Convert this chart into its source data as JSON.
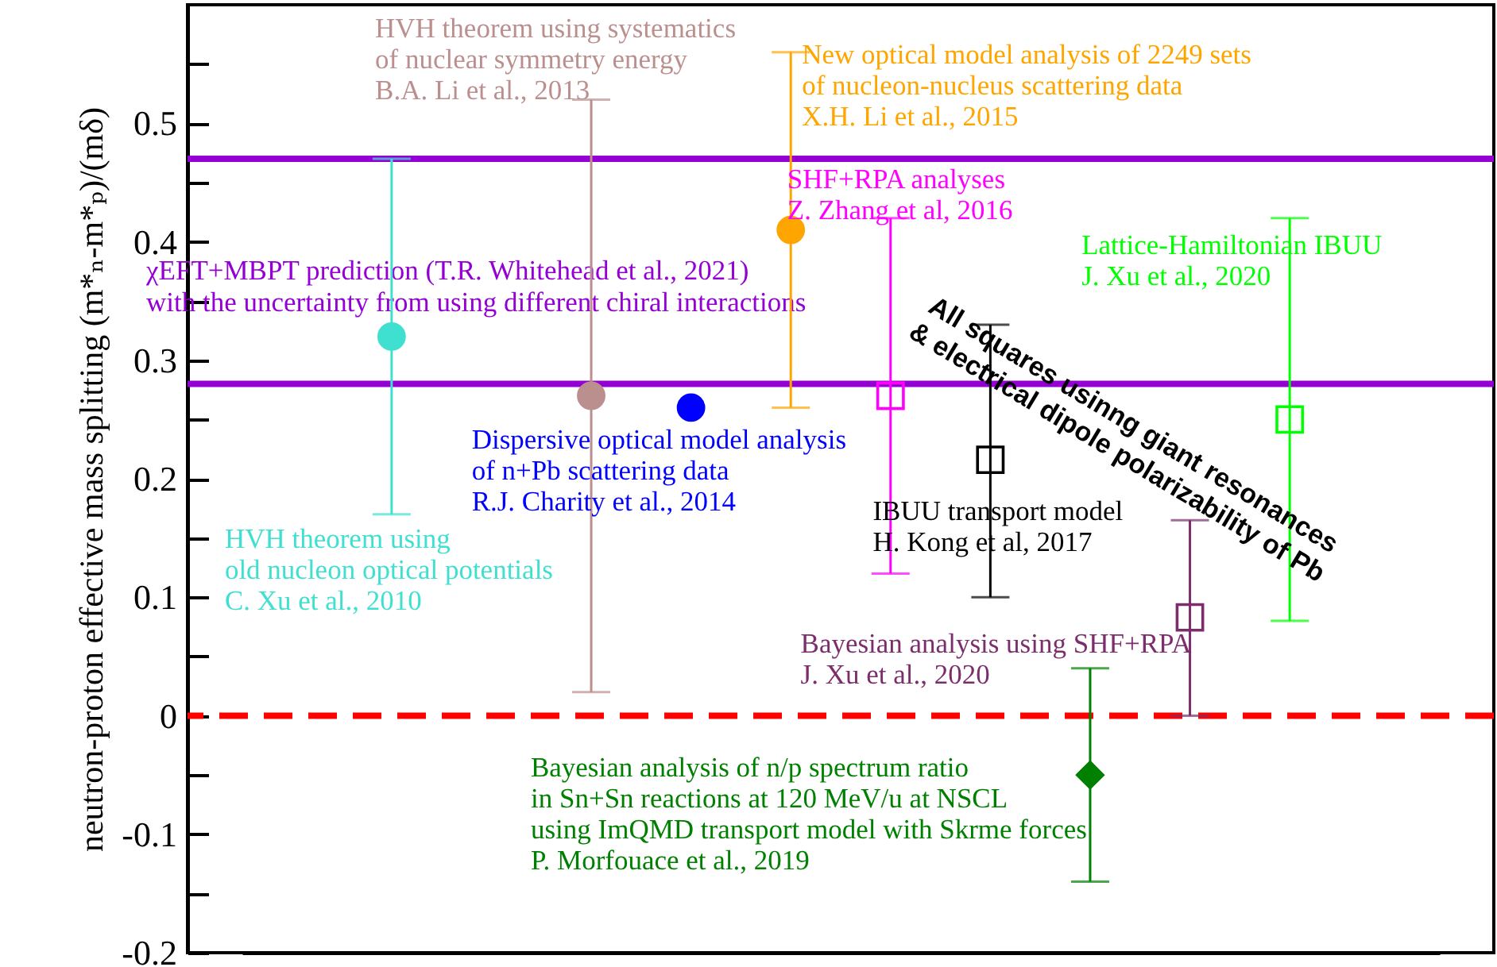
{
  "chart_data": {
    "type": "scatter",
    "ylabel": "neutron-proton effective mass splitting (m*ₙ-m*ₚ)/(mδ)",
    "categories": [
      null,
      null,
      null,
      null,
      null,
      null,
      null,
      null,
      null,
      null,
      null,
      null
    ],
    "ylim": [
      -0.2,
      0.6
    ],
    "yticks": [
      -0.2,
      {
        "value": -0.15,
        "label": null
      },
      -0.1,
      {
        "value": -0.05,
        "label": null
      },
      0,
      {
        "value": 0.05,
        "label": null
      },
      0.1,
      {
        "value": 0.15,
        "label": null
      },
      0.2,
      {
        "value": 0.25,
        "label": null
      },
      0.3,
      {
        "value": 0.35,
        "label": null
      },
      0.4,
      {
        "value": 0.45,
        "label": null
      },
      0.5,
      {
        "value": 0.55,
        "label": null
      }
    ],
    "tick_labels": "y",
    "grid": false,
    "series": [
      {
        "name": "HVH theorem using\nold nucleon optical potentials\nC. Xu et al., 2010",
        "color": "#40e0d0",
        "marker": "circle",
        "values": [
          null,
          0.32,
          null,
          null,
          null,
          null,
          null,
          null,
          null,
          null,
          null,
          null
        ],
        "errors": [
          null,
          [
            0.17,
            0.47
          ],
          null,
          null,
          null,
          null,
          null,
          null,
          null,
          null,
          null,
          null
        ]
      },
      {
        "name": "HVH theorem using systematics\nof nuclear symmetry energy\nB.A. Li et al., 2013",
        "color": "#bc8f8f",
        "marker": "circle",
        "values": [
          null,
          null,
          null,
          0.27,
          null,
          null,
          null,
          null,
          null,
          null,
          null,
          null
        ],
        "errors": [
          null,
          null,
          null,
          [
            0.02,
            0.52
          ],
          null,
          null,
          null,
          null,
          null,
          null,
          null,
          null
        ]
      },
      {
        "name": "Dispersive optical model analysis\nof n+Pb scattering data\nR.J. Charity et al., 2014",
        "color": "#0000ff",
        "marker": "circle",
        "values": [
          null,
          null,
          null,
          null,
          0.26,
          null,
          null,
          null,
          null,
          null,
          null,
          null
        ]
      },
      {
        "name": "New optical model analysis of 2249 sets\nof nucleon-nucleus scattering data\nX.H. Li et al., 2015",
        "color": "#ffa500",
        "marker": "circle",
        "values": [
          null,
          null,
          null,
          null,
          null,
          0.41,
          null,
          null,
          null,
          null,
          null,
          null
        ],
        "errors": [
          null,
          null,
          null,
          null,
          null,
          [
            0.26,
            0.56
          ],
          null,
          null,
          null,
          null,
          null,
          null
        ]
      },
      {
        "name": "SHF+RPA analyses\nZ. Zhang et al, 2016",
        "color": "#ff00ff",
        "marker": "square",
        "values": [
          null,
          null,
          null,
          null,
          null,
          null,
          0.27,
          null,
          null,
          null,
          null,
          null
        ],
        "errors": [
          null,
          null,
          null,
          null,
          null,
          null,
          [
            0.12,
            0.42
          ],
          null,
          null,
          null,
          null,
          null
        ]
      },
      {
        "name": "IBUU transport model\nH. Kong et al, 2017",
        "color": "#000000",
        "marker": "square",
        "values": [
          null,
          null,
          null,
          null,
          null,
          null,
          null,
          0.216,
          null,
          null,
          null,
          null
        ],
        "errors": [
          null,
          null,
          null,
          null,
          null,
          null,
          null,
          [
            0.1,
            0.33
          ],
          null,
          null,
          null,
          null
        ]
      },
      {
        "name": "Bayesian analysis of n/p spectrum ratio\nin Sn+Sn reactions at 120 MeV/u at NSCL\nusing ImQMD transport model with Skrme forces\nP. Morfouace et al., 2019",
        "color": "#008000",
        "marker": "diamond",
        "values": [
          null,
          null,
          null,
          null,
          null,
          null,
          null,
          null,
          -0.05,
          null,
          null,
          null
        ],
        "errors": [
          null,
          null,
          null,
          null,
          null,
          null,
          null,
          null,
          [
            -0.14,
            0.04
          ],
          null,
          null,
          null
        ]
      },
      {
        "name": "Bayesian analysis using SHF+RPA\nJ. Xu et al., 2020",
        "color": "#7b2e6b",
        "marker": "square",
        "values": [
          null,
          null,
          null,
          null,
          null,
          null,
          null,
          null,
          null,
          0.083,
          null,
          null
        ],
        "errors": [
          null,
          null,
          null,
          null,
          null,
          null,
          null,
          null,
          null,
          [
            0.0,
            0.165
          ],
          null,
          null
        ]
      },
      {
        "name": "Lattice-Hamiltonian IBUU\nJ. Xu et al., 2020",
        "color": "#00ff00",
        "marker": "square",
        "values": [
          null,
          null,
          null,
          null,
          null,
          null,
          null,
          null,
          null,
          null,
          0.25,
          null
        ],
        "errors": [
          null,
          null,
          null,
          null,
          null,
          null,
          null,
          null,
          null,
          null,
          [
            0.08,
            0.42
          ],
          null
        ]
      }
    ],
    "ref_lines": [
      {
        "axis": "y",
        "value": 0.47,
        "color": "#9400d3",
        "label": "χEFT+MBPT prediction (T.R. Whitehead et al., 2021)\nwith the uncertainty from using different chiral interactions"
      },
      {
        "axis": "y",
        "value": 0.28,
        "color": "#9400d3"
      },
      {
        "axis": "y",
        "value": 0,
        "color": "#ff0000",
        "line_style": "dashed"
      }
    ],
    "annotations": [
      "All squares usinng giant resonances\n& electrical dipole polarizability of Pb"
    ]
  }
}
